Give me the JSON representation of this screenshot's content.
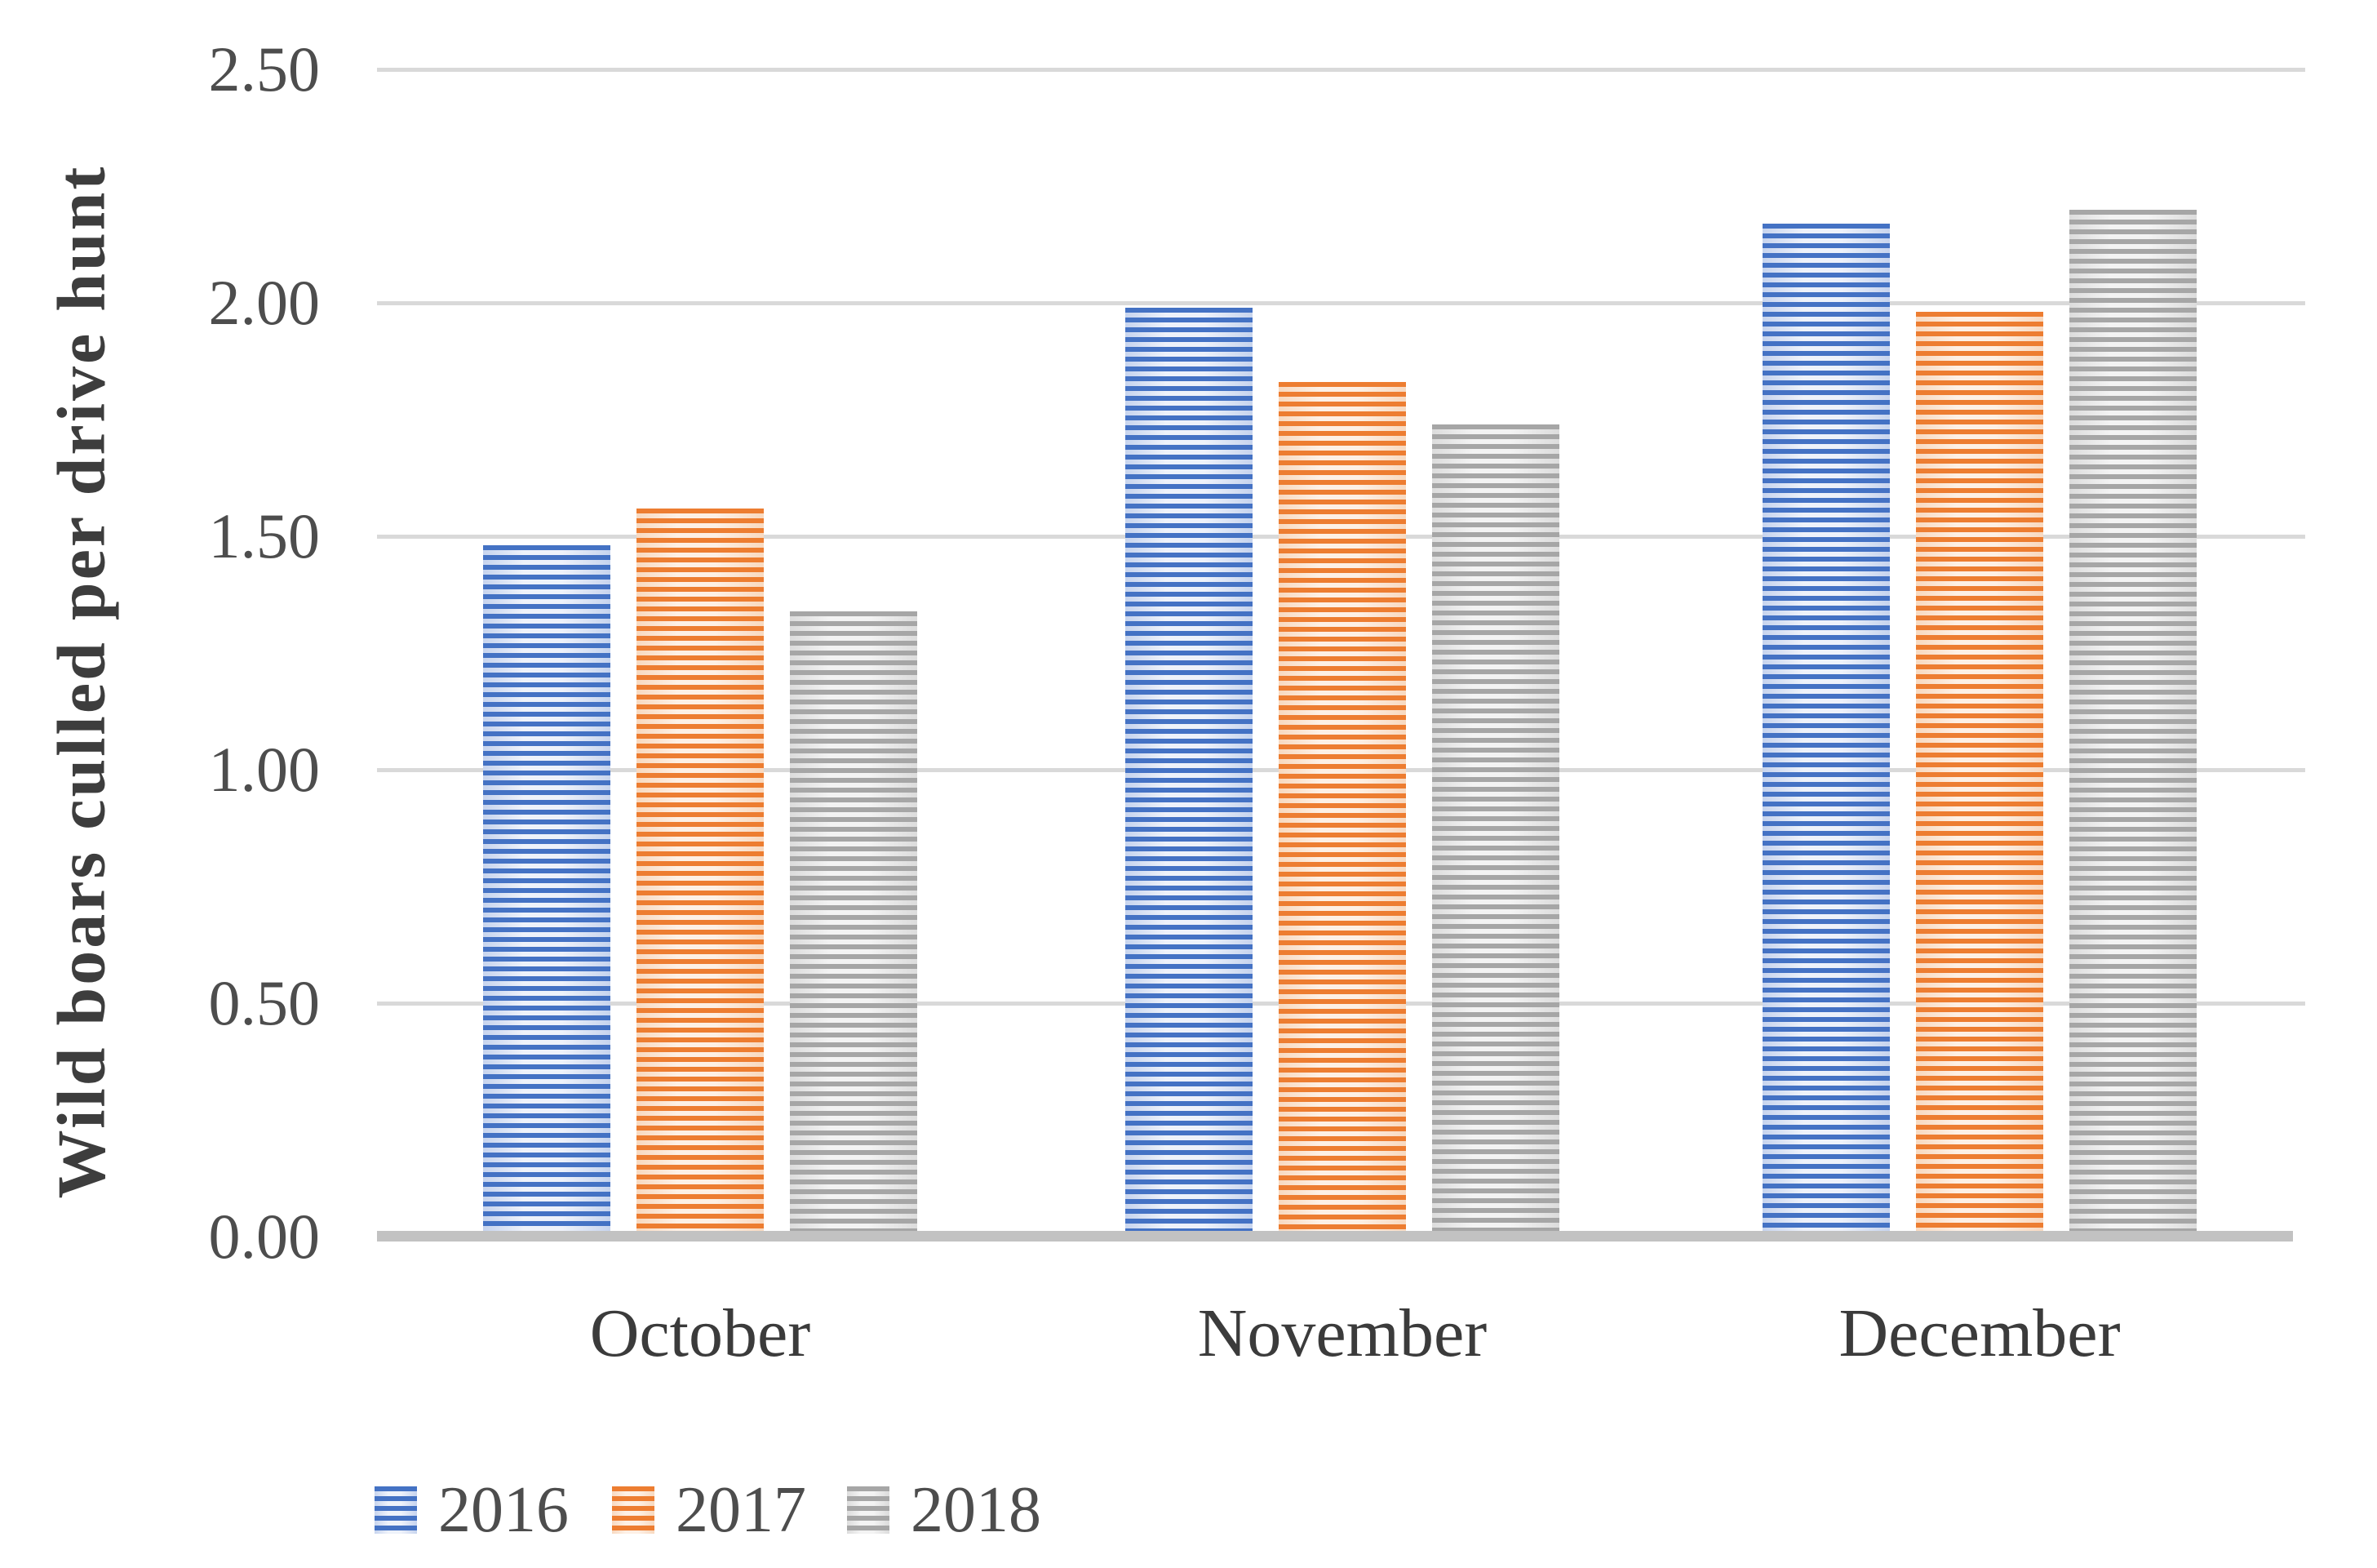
{
  "chart_data": {
    "type": "bar",
    "title": "",
    "xlabel": "",
    "ylabel": "Wild boars culled per drive hunt",
    "categories": [
      "October",
      "November",
      "December"
    ],
    "series": [
      {
        "name": "2016",
        "color": "#4472C4",
        "values": [
          1.48,
          1.99,
          2.17
        ]
      },
      {
        "name": "2017",
        "color": "#ED7D31",
        "values": [
          1.56,
          1.83,
          1.98
        ]
      },
      {
        "name": "2018",
        "color": "#A6A6A6",
        "values": [
          1.34,
          1.74,
          2.2
        ]
      }
    ],
    "ylim": [
      0,
      2.5
    ],
    "ytick_labels": [
      "0.00",
      "0.50",
      "1.00",
      "1.50",
      "2.00",
      "2.50"
    ],
    "ytick_values": [
      0,
      0.5,
      1.0,
      1.5,
      2.0,
      2.5
    ],
    "grid": "horizontal",
    "legend_position": "bottom",
    "bar_fill_pattern": "horizontal-stripes",
    "background_color": "#ffffff",
    "gridline_color": "#d9d9d9",
    "axis_line_color": "#c2c2c2",
    "text_color": "#4d4d4d"
  }
}
